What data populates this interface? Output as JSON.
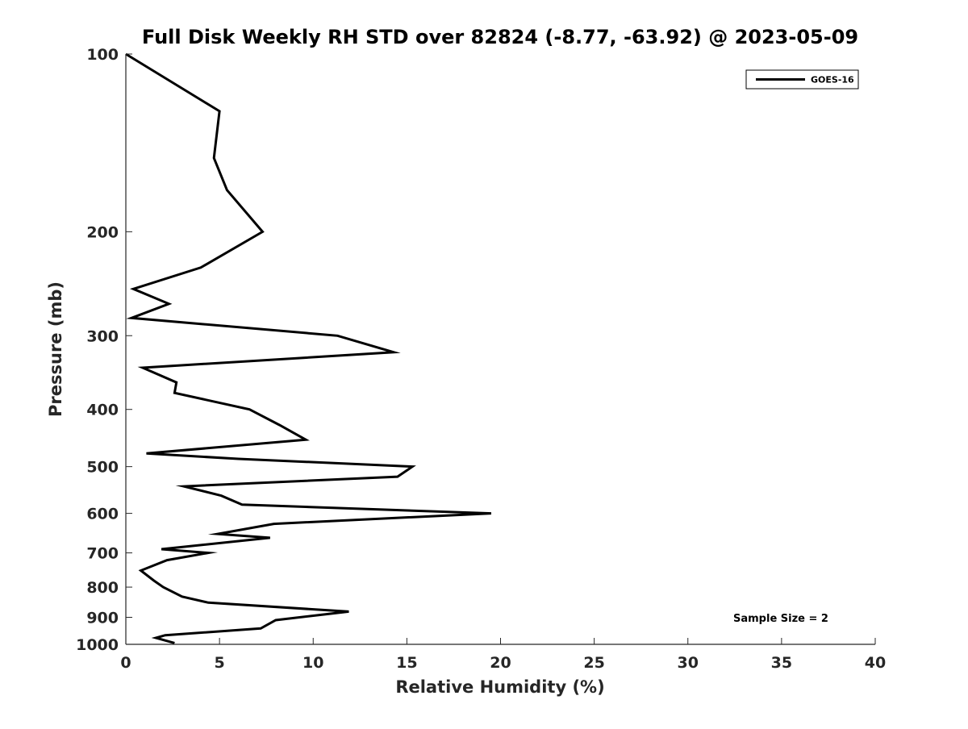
{
  "chart_data": {
    "type": "line",
    "title": "Full Disk Weekly RH STD over 82824 (-8.77, -63.92) @ 2023-05-09",
    "xlabel": "Relative Humidity (%)",
    "ylabel": "Pressure (mb)",
    "xlim": [
      0,
      40
    ],
    "ylim": [
      100,
      1000
    ],
    "y_scale": "log",
    "y_reversed": true,
    "x_ticks": [
      0,
      5,
      10,
      15,
      20,
      25,
      30,
      35,
      40
    ],
    "x_tick_labels": [
      "0",
      "5",
      "10",
      "15",
      "20",
      "25",
      "30",
      "35",
      "40"
    ],
    "y_ticks": [
      100,
      200,
      300,
      400,
      500,
      600,
      700,
      800,
      900,
      1000
    ],
    "y_tick_labels": [
      "100",
      "200",
      "300",
      "400",
      "500",
      "600",
      "700",
      "800",
      "900",
      "1000"
    ],
    "grid": false,
    "legend_position": "top-right",
    "annotation": "Sample Size = 2",
    "series": [
      {
        "name": "GOES-16",
        "color": "#000000",
        "points": [
          [
            0.0,
            100
          ],
          [
            5.0,
            125
          ],
          [
            4.7,
            150
          ],
          [
            5.4,
            170
          ],
          [
            7.3,
            200
          ],
          [
            4.0,
            230
          ],
          [
            0.4,
            250
          ],
          [
            2.3,
            265
          ],
          [
            0.3,
            280
          ],
          [
            11.3,
            300
          ],
          [
            14.3,
            320
          ],
          [
            0.9,
            340
          ],
          [
            2.7,
            360
          ],
          [
            2.6,
            375
          ],
          [
            6.6,
            400
          ],
          [
            8.2,
            425
          ],
          [
            9.6,
            450
          ],
          [
            1.1,
            475
          ],
          [
            6.0,
            485
          ],
          [
            15.3,
            500
          ],
          [
            14.5,
            520
          ],
          [
            3.1,
            540
          ],
          [
            5.1,
            560
          ],
          [
            6.2,
            580
          ],
          [
            19.5,
            600
          ],
          [
            7.9,
            625
          ],
          [
            4.9,
            650
          ],
          [
            7.7,
            660
          ],
          [
            1.9,
            690
          ],
          [
            4.4,
            700
          ],
          [
            2.2,
            720
          ],
          [
            0.8,
            750
          ],
          [
            1.5,
            780
          ],
          [
            2.0,
            800
          ],
          [
            3.0,
            830
          ],
          [
            4.4,
            850
          ],
          [
            11.9,
            880
          ],
          [
            8.0,
            910
          ],
          [
            7.2,
            940
          ],
          [
            2.1,
            965
          ],
          [
            1.6,
            975
          ],
          [
            2.6,
            995
          ]
        ]
      }
    ]
  }
}
